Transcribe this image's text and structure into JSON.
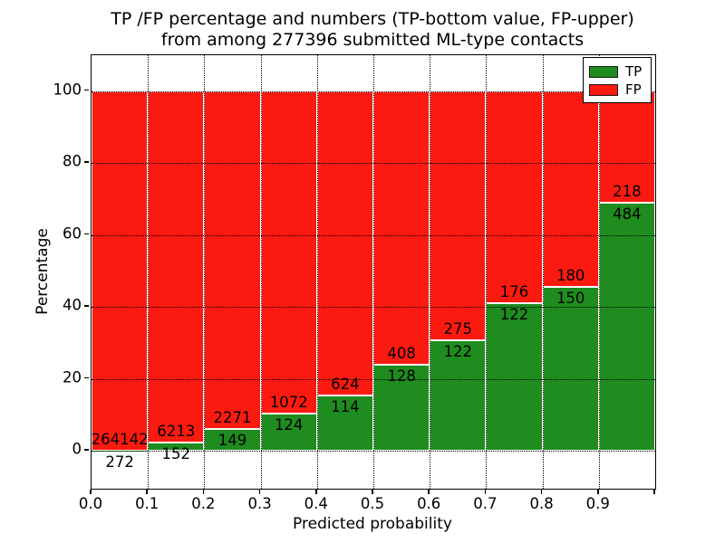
{
  "figure": {
    "title_line1": "TP /FP percentage and numbers (TP-bottom value, FP-upper)",
    "title_line2": "from among 277396 submitted ML-type contacts",
    "total_contacts": "277396"
  },
  "chart_data": {
    "type": "bar",
    "stacked": true,
    "normalized_to_percent": 100,
    "title": "TP /FP percentage and numbers (TP-bottom value, FP-upper) from among 277396 submitted ML-type contacts",
    "xlabel": "Predicted probability",
    "ylabel": "Percentage",
    "bin_width": 0.1,
    "bin_starts": [
      0.0,
      0.1,
      0.2,
      0.3,
      0.4,
      0.5,
      0.6,
      0.7,
      0.8,
      0.9
    ],
    "series": [
      {
        "name": "TP",
        "color": "#1e8c1e",
        "counts": [
          272,
          152,
          149,
          124,
          114,
          128,
          122,
          122,
          150,
          484
        ]
      },
      {
        "name": "FP",
        "color": "#fb1a10",
        "counts": [
          264142,
          6213,
          2271,
          1072,
          624,
          408,
          275,
          176,
          180,
          218
        ]
      }
    ],
    "tp_percent": [
      0.1,
      2.39,
      6.16,
      10.37,
      15.45,
      23.88,
      30.73,
      40.94,
      45.45,
      68.95
    ],
    "x_ticks": [
      {
        "pos": 0.0,
        "label": "0.0"
      },
      {
        "pos": 0.1,
        "label": "0.1"
      },
      {
        "pos": 0.2,
        "label": "0.2"
      },
      {
        "pos": 0.3,
        "label": "0.3"
      },
      {
        "pos": 0.4,
        "label": "0.4"
      },
      {
        "pos": 0.5,
        "label": "0.5"
      },
      {
        "pos": 0.6,
        "label": "0.6"
      },
      {
        "pos": 0.7,
        "label": "0.7"
      },
      {
        "pos": 0.8,
        "label": "0.8"
      },
      {
        "pos": 0.9,
        "label": "0.9"
      },
      {
        "pos": 1.0,
        "label": ""
      }
    ],
    "y_ticks": [
      {
        "pos": 0,
        "label": "0"
      },
      {
        "pos": 20,
        "label": "20"
      },
      {
        "pos": 40,
        "label": "40"
      },
      {
        "pos": 60,
        "label": "60"
      },
      {
        "pos": 80,
        "label": "80"
      },
      {
        "pos": 100,
        "label": "100"
      }
    ],
    "xlim": [
      0,
      1
    ],
    "ylim": [
      -10.6,
      109.9
    ],
    "grid": true,
    "grid_style": "dotted",
    "bar_edge_color": "#ffffff",
    "legend_position": "upper right",
    "legend": [
      {
        "label": "TP",
        "color": "#1e8c1e"
      },
      {
        "label": "FP",
        "color": "#fb1a10"
      }
    ]
  }
}
